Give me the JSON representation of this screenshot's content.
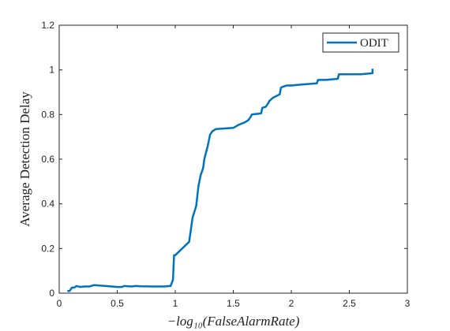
{
  "chart_data": {
    "type": "line",
    "title": "",
    "xlabel": "−log₁₀(FalseAlarmRate)",
    "ylabel": "Average Detection Delay",
    "xlim": [
      0,
      3
    ],
    "ylim": [
      0,
      1.2
    ],
    "x_ticks": [
      "0",
      "0.5",
      "1",
      "1.5",
      "2",
      "2.5",
      "3"
    ],
    "y_ticks": [
      "0",
      "0.2",
      "0.4",
      "0.6",
      "0.8",
      "1",
      "1.2"
    ],
    "grid": false,
    "legend_position": "top-right",
    "colors": {
      "series": "#0072BD",
      "axis": "#262626"
    },
    "series": [
      {
        "name": "ODIT",
        "x": [
          0.07,
          0.09,
          0.11,
          0.13,
          0.15,
          0.18,
          0.22,
          0.26,
          0.3,
          0.33,
          0.4,
          0.5,
          0.54,
          0.56,
          0.62,
          0.66,
          0.7,
          0.8,
          0.9,
          0.96,
          0.98,
          0.99,
          1.0,
          1.06,
          1.12,
          1.15,
          1.18,
          1.2,
          1.22,
          1.24,
          1.25,
          1.26,
          1.28,
          1.3,
          1.32,
          1.35,
          1.4,
          1.5,
          1.55,
          1.6,
          1.63,
          1.65,
          1.66,
          1.74,
          1.75,
          1.78,
          1.8,
          1.81,
          1.84,
          1.9,
          1.91,
          1.93,
          1.96,
          2.0,
          2.1,
          2.22,
          2.23,
          2.3,
          2.4,
          2.41,
          2.6,
          2.7,
          2.7
        ],
        "y": [
          0.01,
          0.01,
          0.025,
          0.025,
          0.032,
          0.028,
          0.03,
          0.03,
          0.036,
          0.035,
          0.032,
          0.028,
          0.028,
          0.032,
          0.03,
          0.032,
          0.031,
          0.03,
          0.03,
          0.032,
          0.06,
          0.17,
          0.17,
          0.2,
          0.23,
          0.34,
          0.39,
          0.48,
          0.53,
          0.56,
          0.6,
          0.62,
          0.66,
          0.71,
          0.725,
          0.735,
          0.737,
          0.74,
          0.755,
          0.765,
          0.775,
          0.79,
          0.8,
          0.805,
          0.83,
          0.835,
          0.85,
          0.86,
          0.875,
          0.89,
          0.92,
          0.925,
          0.93,
          0.93,
          0.935,
          0.94,
          0.955,
          0.955,
          0.96,
          0.98,
          0.98,
          0.985,
          1.005
        ]
      }
    ]
  }
}
